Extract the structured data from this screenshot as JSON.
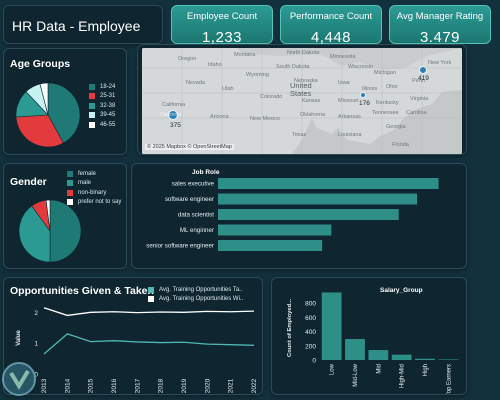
{
  "header": {
    "title": "HR Data - Employee"
  },
  "kpis": [
    {
      "label": "Employee Count",
      "value": "1,233"
    },
    {
      "label": "Performance Count",
      "value": "4,448"
    },
    {
      "label": "Avg Manager Rating",
      "value": "3.479"
    }
  ],
  "colors": {
    "background": "#13313d",
    "panel": "#0f2631",
    "teal": "#2a8a83",
    "bar": "#2e8e88",
    "red": "#e33b3d",
    "lightcyan": "#c6f2f2",
    "accent_kpi": "#1f827b"
  },
  "age_groups": {
    "title": "Age Groups",
    "legend": [
      {
        "label": "18-24",
        "color": "#1f7a75"
      },
      {
        "label": "25-31",
        "color": "#e33b3d"
      },
      {
        "label": "32-38",
        "color": "#2b9a93"
      },
      {
        "label": "39-45",
        "color": "#c6f2f2"
      },
      {
        "label": "46-55",
        "color": "#ffffff"
      }
    ]
  },
  "map": {
    "state_labels": [
      "Oregon",
      "Idaho",
      "Montana",
      "North Dakota",
      "Minnesota",
      "Wisconsin",
      "Michigan",
      "New York",
      "South Dakota",
      "Wyoming",
      "Iowa",
      "Illinois",
      "Ohio",
      "Penn.",
      "Nebraska",
      "Utah",
      "Colorado",
      "Kansas",
      "Missouri",
      "Kentucky",
      "Virginia",
      "California",
      "Arizona",
      "New Mexico",
      "Oklahoma",
      "Arkansas",
      "Tennessee",
      "Carolina",
      "Texas",
      "Louisiana",
      "Georgia",
      "Florida",
      "Nevada"
    ],
    "country_label": "United States",
    "markers": [
      {
        "label": "California",
        "value": "375"
      },
      {
        "label": "Illinois",
        "value": "176"
      },
      {
        "label": "New York",
        "value": "419"
      }
    ],
    "attribution": "© 2025 Mapbox © OpenStreetMap"
  },
  "gender": {
    "title": "Gender",
    "legend": [
      {
        "label": "female",
        "color": "#1f7a75"
      },
      {
        "label": "male",
        "color": "#2b9a93"
      },
      {
        "label": "non-binary",
        "color": "#e33b3d"
      },
      {
        "label": "prefer not to say",
        "color": "#ffffff"
      }
    ]
  },
  "job_role": {
    "title": "Job Role"
  },
  "opportunities": {
    "title": "Opportunities Given & Taken"
  },
  "salary": {
    "title": "Salary_Group"
  },
  "chart_data": [
    {
      "type": "pie",
      "title": "Age Groups",
      "categories": [
        "18-24",
        "25-31",
        "32-38",
        "39-45",
        "46-55"
      ],
      "values": [
        42,
        32,
        14,
        8,
        4
      ]
    },
    {
      "type": "pie",
      "title": "Gender",
      "categories": [
        "female",
        "male",
        "non-binary",
        "prefer not to say"
      ],
      "values": [
        50,
        40,
        8,
        2
      ]
    },
    {
      "type": "bar",
      "orientation": "horizontal",
      "title": "Job Role",
      "categories": [
        "sales executive",
        "software engineer",
        "data scientist",
        "ML enginner",
        "senior software engineer"
      ],
      "values": [
        360,
        325,
        295,
        185,
        170
      ],
      "xlim": [
        0,
        400
      ]
    },
    {
      "type": "line",
      "title": "",
      "x": [
        "2013",
        "2014",
        "2015",
        "2016",
        "2017",
        "2018",
        "2019",
        "2020",
        "2021",
        "2022"
      ],
      "xlabel": "",
      "ylabel": "Value",
      "ylim": [
        0,
        2.4
      ],
      "yticks": [
        0,
        1,
        2
      ],
      "series": [
        {
          "name": "Avg. Training Opportunities Ta..",
          "color": "#4fb8b2",
          "values": [
            0.65,
            1.3,
            1.05,
            1.08,
            1.04,
            1.02,
            1.03,
            0.97,
            0.95,
            0.93
          ]
        },
        {
          "name": "Avg. Training Opportunities Wi..",
          "color": "#ffffff",
          "values": [
            2.15,
            1.9,
            2.0,
            2.02,
            1.99,
            2.01,
            2.0,
            2.03,
            2.02,
            2.04
          ]
        }
      ]
    },
    {
      "type": "bar",
      "title": "Salary_Group",
      "categories": [
        "Low",
        "Mid-Low",
        "Mid",
        "High-Mid",
        "High",
        "Top Earners"
      ],
      "values": [
        950,
        295,
        140,
        75,
        18,
        8
      ],
      "ylabel": "Count of Employed...",
      "ylim": [
        0,
        900
      ],
      "yticks": [
        0,
        200,
        400,
        600,
        800
      ]
    }
  ]
}
